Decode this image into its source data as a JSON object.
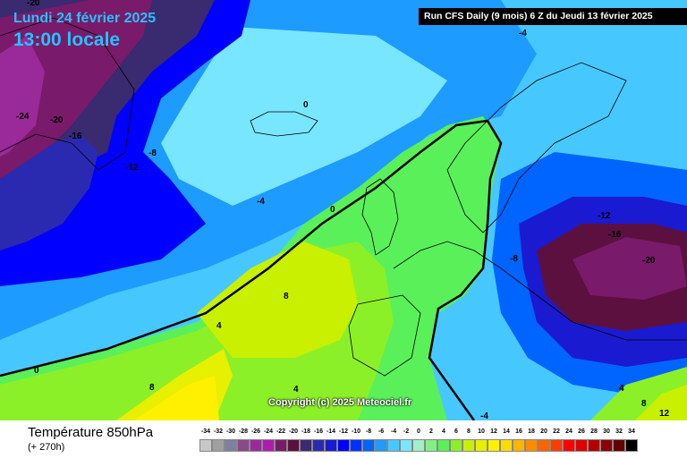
{
  "header": {
    "date": "Lundi 24 février 2025",
    "time": "13:00 locale",
    "run_info": "Run CFS Daily (9 mois) 6 Z du Jeudi 13 février 2025"
  },
  "copyright": "Copyright (c) 2025 Meteociel.fr",
  "legend": {
    "title": "Température 850hPa",
    "subtitle": "(+ 270h)",
    "values": [
      "-34",
      "-32",
      "-30",
      "-28",
      "-26",
      "-24",
      "-22",
      "-20",
      "-18",
      "-16",
      "-14",
      "-12",
      "-10",
      "-8",
      "-6",
      "-4",
      "-2",
      "0",
      "2",
      "4",
      "6",
      "8",
      "10",
      "12",
      "14",
      "16",
      "18",
      "20",
      "22",
      "24",
      "26",
      "28",
      "30",
      "32",
      "34"
    ],
    "colors": [
      "#c8c8c8",
      "#a0a0a0",
      "#7f7f9f",
      "#8a4a8a",
      "#9a2a9a",
      "#b01ab0",
      "#7a1a6a",
      "#5c1040",
      "#3a2a70",
      "#2a2ab0",
      "#1a1ad0",
      "#0000ff",
      "#0032ff",
      "#0064ff",
      "#1e9bff",
      "#46c8ff",
      "#78e6ff",
      "#a0f0c8",
      "#82f082",
      "#5af05a",
      "#8cf028",
      "#c8f000",
      "#e6f000",
      "#fff000",
      "#ffdc00",
      "#ffb400",
      "#ff8c00",
      "#ff6400",
      "#ff3c00",
      "#ff0000",
      "#dc0000",
      "#b40000",
      "#8c0000",
      "#640000",
      "#000000"
    ]
  },
  "contour_labels": [
    "-20",
    "-24",
    "-20",
    "-16",
    "-12",
    "-8",
    "-4",
    "0",
    "0",
    "-4",
    "-12",
    "-16",
    "-20",
    "-8",
    "8",
    "4",
    "4",
    "0",
    "8",
    "4",
    "8",
    "12",
    "-4"
  ]
}
